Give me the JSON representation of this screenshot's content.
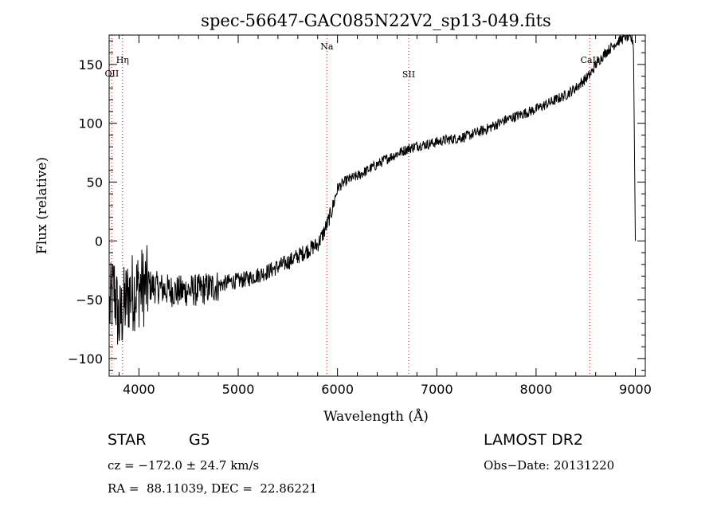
{
  "chart_data": {
    "type": "line",
    "title": "spec-56647-GAC085N22V2_sp13-049.fits",
    "xlabel": "Wavelength (Å)",
    "ylabel": "Flux (relative)",
    "xlim": [
      3700,
      9100
    ],
    "ylim": [
      -115,
      175
    ],
    "xticks": [
      4000,
      5000,
      6000,
      7000,
      8000,
      9000
    ],
    "yticks": [
      -100,
      -50,
      0,
      50,
      100,
      150
    ],
    "xtick_labels": [
      "4000",
      "5000",
      "6000",
      "7000",
      "8000",
      "9000"
    ],
    "ytick_labels": [
      "−100",
      "−50",
      "0",
      "50",
      "100",
      "150"
    ],
    "grid": false,
    "line_color": "#000000",
    "marker_color": "#cc0000",
    "series": [
      {
        "x": [
          3700,
          3750,
          3800,
          3850,
          3900,
          4000,
          4100,
          4200,
          4300,
          4400,
          4500,
          4600,
          4700,
          4800,
          4900,
          5000,
          5100,
          5200,
          5300,
          5400,
          5500,
          5600,
          5700,
          5800,
          5850,
          5900,
          5950,
          6000,
          6100,
          6200,
          6300,
          6400,
          6500,
          6600,
          6700,
          6800,
          6900,
          7000,
          7100,
          7200,
          7300,
          7400,
          7500,
          7600,
          7700,
          7800,
          7900,
          8000,
          8100,
          8200,
          8300,
          8400,
          8500,
          8550,
          8600,
          8700,
          8800,
          8900,
          8950,
          8980,
          9000
        ],
        "y": [
          -60,
          -40,
          -70,
          -55,
          -45,
          -40,
          -38,
          -40,
          -42,
          -43,
          -42,
          -42,
          -40,
          -38,
          -35,
          -34,
          -32,
          -29,
          -26,
          -22,
          -18,
          -13,
          -8,
          -3,
          5,
          15,
          28,
          45,
          52,
          55,
          60,
          65,
          70,
          74,
          78,
          81,
          82,
          84,
          86,
          87,
          89,
          92,
          95,
          99,
          103,
          106,
          109,
          112,
          116,
          120,
          124,
          130,
          138,
          142,
          150,
          160,
          168,
          174,
          172,
          170,
          0
        ]
      }
    ],
    "markers": [
      {
        "name": "OII",
        "x": 3727
      },
      {
        "name": "Hη",
        "x": 3835
      },
      {
        "name": "Na",
        "x": 5893
      },
      {
        "name": "SII",
        "x": 6717
      },
      {
        "name": "CaII",
        "x": 8542
      }
    ]
  },
  "info": {
    "class": "STAR",
    "subclass": "G5",
    "survey": "LAMOST DR2",
    "cz": "cz = −172.0 ± 24.7 km/s",
    "obs_date": "Obs−Date: 20131220",
    "coords": "RA =  88.11039, DEC =  22.86221"
  }
}
